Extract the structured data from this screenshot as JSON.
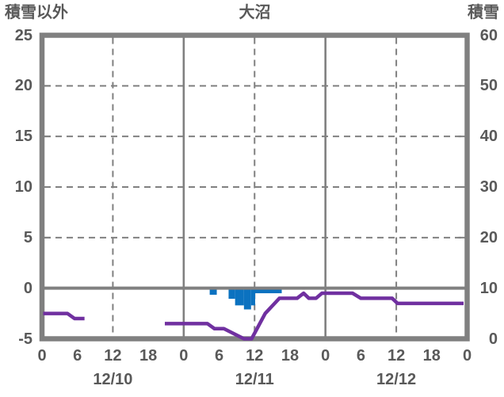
{
  "header": {
    "left_axis_title": "積雪以外",
    "chart_title": "大沼",
    "right_axis_title": "積雪"
  },
  "chart_data": {
    "type": "line+bar",
    "title": "大沼",
    "left_axis": {
      "title": "積雪以外",
      "min": -5,
      "max": 25,
      "tick_values": [
        25,
        20,
        15,
        10,
        5,
        0,
        -5
      ],
      "tick_labels": [
        "25",
        "20",
        "15",
        "10",
        "5",
        "0",
        "-5"
      ]
    },
    "right_axis": {
      "title": "積雪",
      "min": 0,
      "max": 60,
      "tick_values": [
        60,
        50,
        40,
        30,
        20,
        10,
        0
      ],
      "tick_labels": [
        "60",
        "50",
        "40",
        "30",
        "20",
        "10",
        "0"
      ]
    },
    "x_axis": {
      "hours_span": 72,
      "hour_tick_step": 6,
      "hour_tick_labels": [
        "0",
        "6",
        "12",
        "18",
        "0",
        "6",
        "12",
        "18",
        "0",
        "6",
        "12",
        "18",
        "0"
      ],
      "date_labels": [
        {
          "text": "12/10",
          "hour": 12
        },
        {
          "text": "12/11",
          "hour": 36
        },
        {
          "text": "12/12",
          "hour": 60
        }
      ]
    },
    "grid": {
      "vertical_dashed_hours": [
        12,
        36,
        60
      ],
      "vertical_solid_hours": [
        24,
        48
      ],
      "horizontal_dashed_values": [
        20,
        15,
        10,
        5
      ],
      "zero_value": 0,
      "inner_tick_values": [
        20,
        15,
        10,
        5,
        0
      ]
    },
    "series": [
      {
        "name": "snow-depth-line",
        "type": "line",
        "axis": "right",
        "color": "#7030A0",
        "segments": [
          [
            [
              0.2,
              5
            ],
            [
              4.3,
              5
            ],
            [
              5.5,
              4
            ],
            [
              7.2,
              4
            ]
          ],
          [
            [
              20.8,
              3
            ],
            [
              28.0,
              3
            ],
            [
              29.2,
              2
            ],
            [
              30.8,
              2
            ],
            [
              34.2,
              0
            ],
            [
              35.5,
              0
            ],
            [
              37.8,
              5
            ],
            [
              40.2,
              8
            ],
            [
              43.2,
              8
            ],
            [
              44.3,
              9
            ],
            [
              45.2,
              8
            ],
            [
              46.4,
              8
            ],
            [
              47.4,
              9
            ],
            [
              52.6,
              9
            ],
            [
              54.0,
              8
            ],
            [
              59.3,
              8
            ],
            [
              60.2,
              7
            ],
            [
              71.4,
              7
            ]
          ]
        ]
      },
      {
        "name": "hourly-bars",
        "type": "bar",
        "axis": "left",
        "color": "#0B72C0",
        "bars": [
          {
            "start": 28.4,
            "end": 29.6,
            "value": -0.65
          },
          {
            "start": 31.6,
            "end": 32.7,
            "value": -1.05
          },
          {
            "start": 32.7,
            "end": 34.2,
            "value": -1.7
          },
          {
            "start": 34.2,
            "end": 35.4,
            "value": -2.1
          },
          {
            "start": 35.4,
            "end": 36.1,
            "value": -1.7
          },
          {
            "start": 36.1,
            "end": 40.6,
            "value": -0.5
          }
        ]
      }
    ],
    "colors": {
      "frame": "#808080",
      "grid": "#808080",
      "text": "#595959",
      "line": "#7030A0",
      "bar": "#0B72C0",
      "background": "#FFFFFF"
    }
  }
}
